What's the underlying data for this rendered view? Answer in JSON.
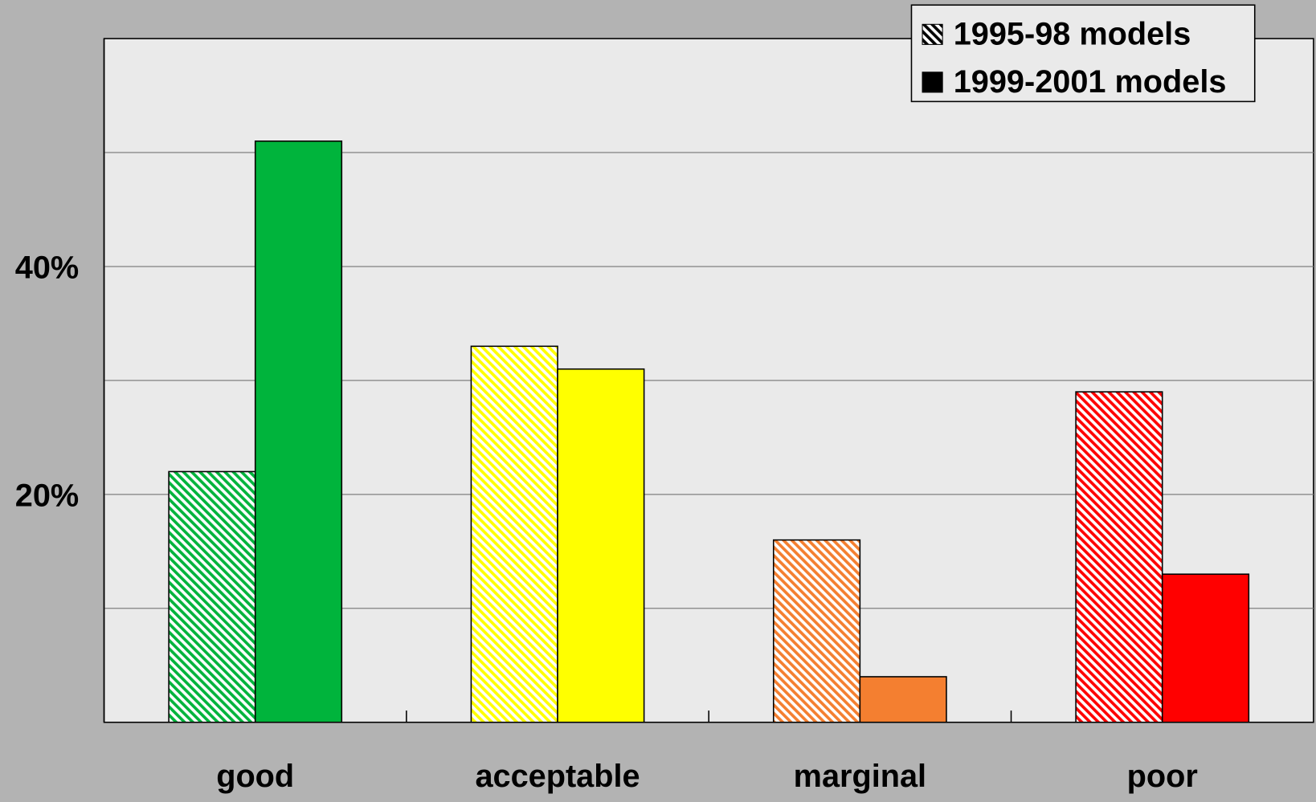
{
  "chart_data": {
    "type": "bar",
    "categories": [
      "good",
      "acceptable",
      "marginal",
      "poor"
    ],
    "category_colors": [
      "#00b43c",
      "#ffff00",
      "#f47f30",
      "#ff0000"
    ],
    "series": [
      {
        "name": "1995-98 models",
        "color": "#000000",
        "pattern": "hatch",
        "values": [
          22,
          33,
          16,
          29
        ]
      },
      {
        "name": "1999-2001 models",
        "color": "#000000",
        "pattern": "solid",
        "values": [
          51,
          31,
          4,
          13
        ]
      }
    ],
    "ylim": [
      0,
      60
    ],
    "yticks": [
      {
        "value": 20,
        "label": "20%"
      },
      {
        "value": 40,
        "label": "40%"
      }
    ],
    "minor_yticks": [
      10,
      30,
      50
    ],
    "grid": true,
    "legend": "top-right"
  }
}
